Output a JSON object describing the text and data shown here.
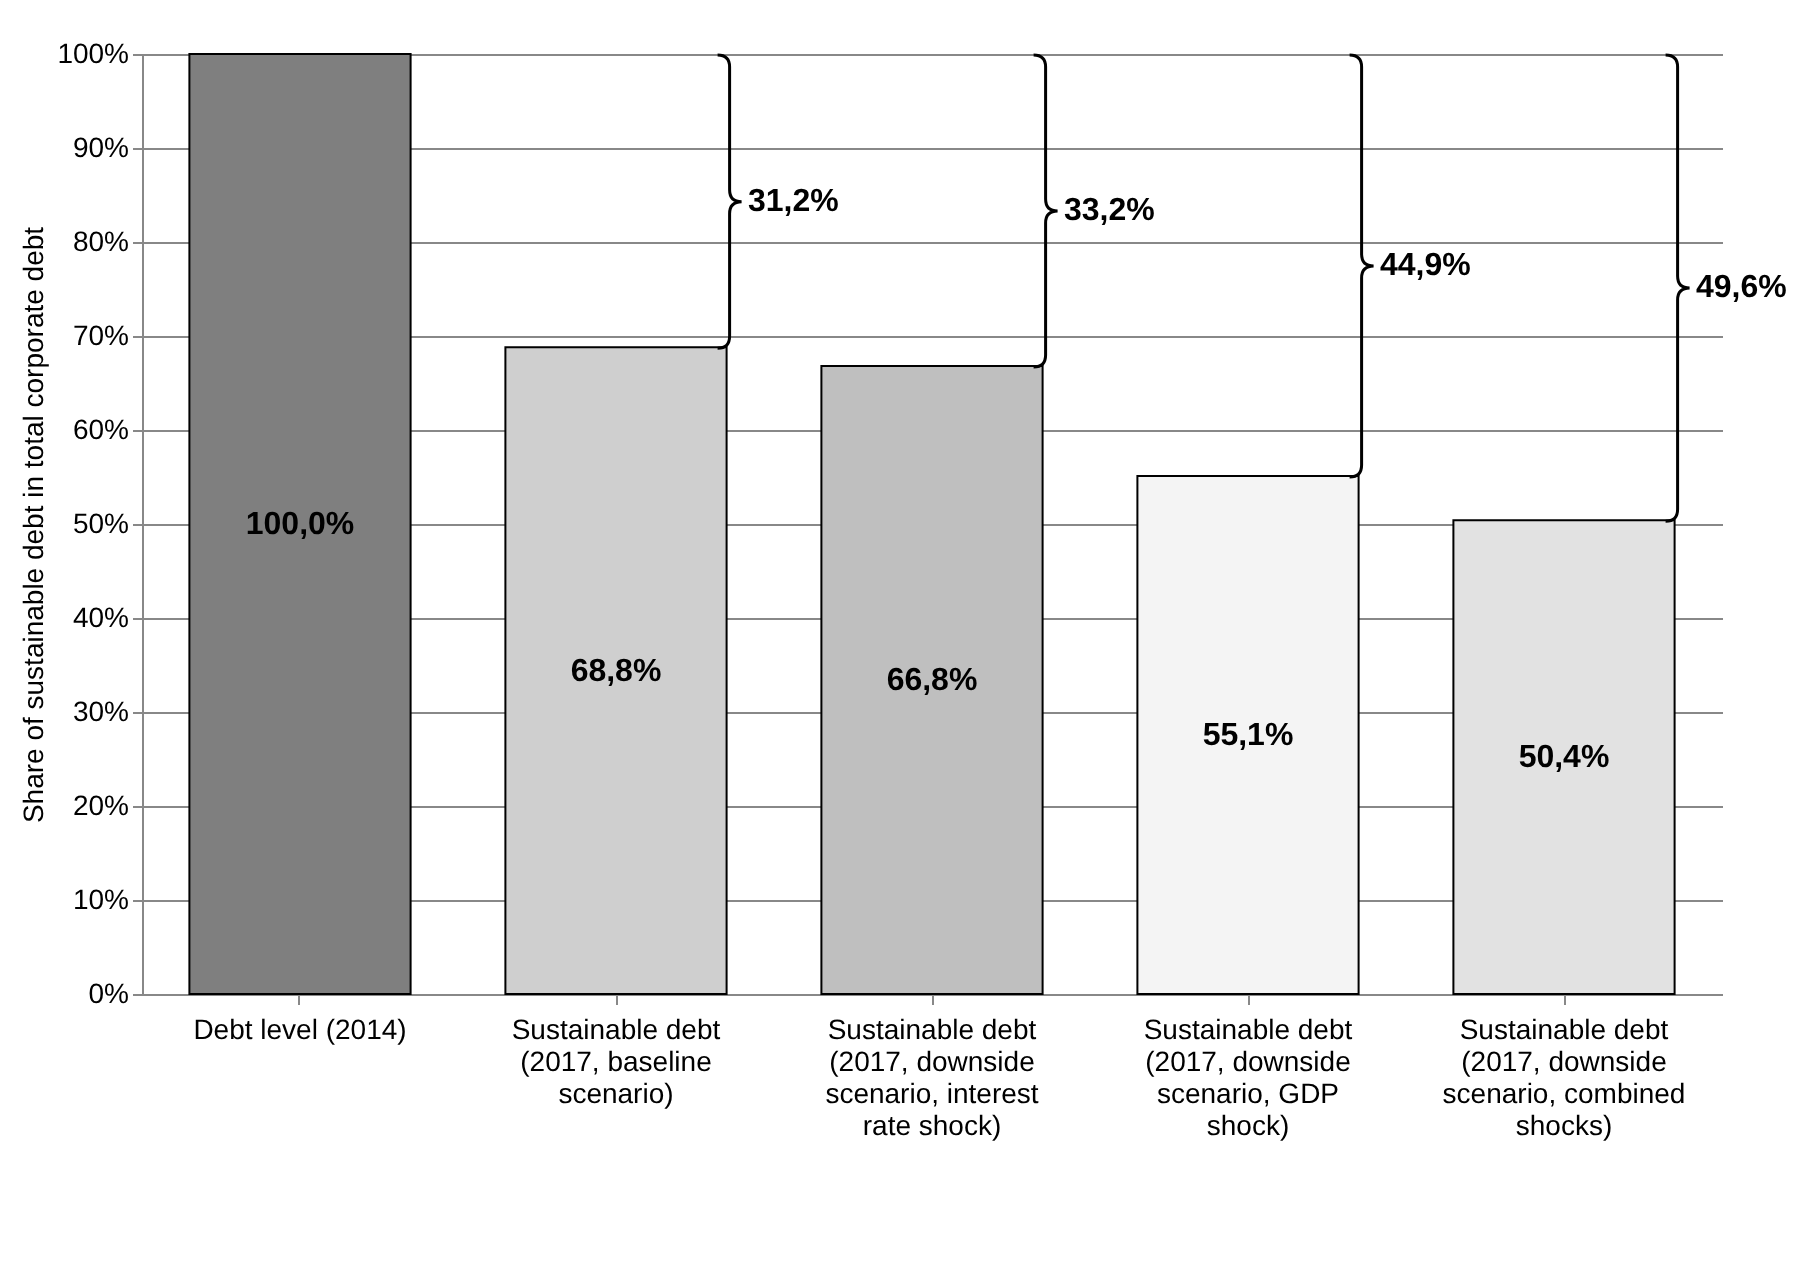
{
  "chart_data": {
    "type": "bar",
    "ylabel": "Share of sustainable debt in total corporate debt",
    "categories": [
      "Debt level (2014)",
      "Sustainable debt (2017, baseline scenario)",
      "Sustainable debt (2017, downside scenario, interest rate shock)",
      "Sustainable debt (2017, downside scenario, GDP shock)",
      "Sustainable debt (2017, downside scenario, combined shocks)"
    ],
    "values": [
      100,
      68.8,
      66.8,
      55.1,
      50.4
    ],
    "colors": [
      "#7f7f7f",
      "#cfcfcf",
      "#bfbfbf",
      "#f4f4f4",
      "#e2e2e2"
    ],
    "value_labels": [
      "100,0%",
      "68,8%",
      "66,8%",
      "55,1%",
      "50,4%"
    ],
    "annotations": [
      "31,2%",
      "33,2%",
      "44,9%",
      "49,6%"
    ],
    "ylim": [
      0,
      100
    ],
    "yticks": [
      {
        "value": 0,
        "label": "0%"
      },
      {
        "value": 10,
        "label": "10%"
      },
      {
        "value": 20,
        "label": "20%"
      },
      {
        "value": 30,
        "label": "30%"
      },
      {
        "value": 40,
        "label": "40%"
      },
      {
        "value": 50,
        "label": "50%"
      },
      {
        "value": 60,
        "label": "60%"
      },
      {
        "value": 70,
        "label": "70%"
      },
      {
        "value": 80,
        "label": "80%"
      },
      {
        "value": 90,
        "label": "90%"
      },
      {
        "value": 100,
        "label": "100%"
      }
    ],
    "grid": "y",
    "legend": false
  }
}
